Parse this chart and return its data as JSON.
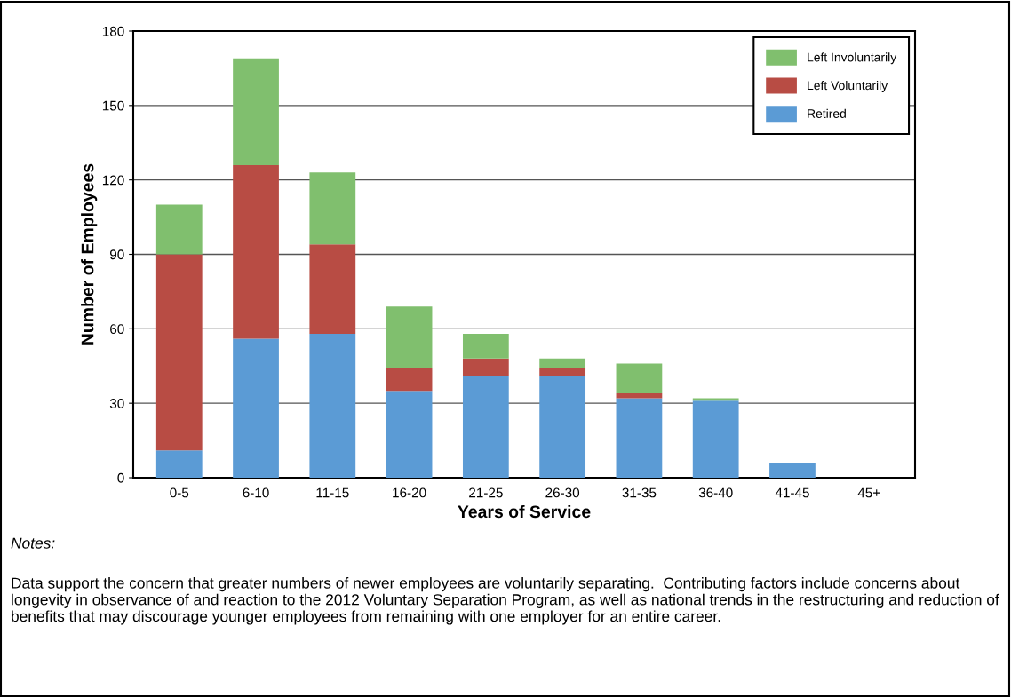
{
  "chart_data": {
    "type": "bar",
    "stacked": true,
    "xlabel": "Years of Service",
    "ylabel": "Number of Employees",
    "categories": [
      "0-5",
      "6-10",
      "11-15",
      "16-20",
      "21-25",
      "26-30",
      "31-35",
      "36-40",
      "41-45",
      "45+"
    ],
    "series": [
      {
        "name": "Retired",
        "color": "#5b9bd5",
        "values": [
          11,
          56,
          58,
          35,
          41,
          41,
          32,
          31,
          6,
          0
        ]
      },
      {
        "name": "Left Voluntarily",
        "color": "#b84c44",
        "values": [
          79,
          70,
          36,
          9,
          7,
          3,
          2,
          0,
          0,
          0
        ]
      },
      {
        "name": "Left Involuntarily",
        "color": "#80bf6e",
        "values": [
          20,
          43,
          29,
          25,
          10,
          4,
          12,
          1,
          0,
          0
        ]
      }
    ],
    "ylim": [
      0,
      180
    ],
    "yticks": [
      0,
      30,
      60,
      90,
      120,
      150,
      180
    ],
    "grid": "y",
    "legend": "top right",
    "annotations": [
      "Notes:",
      "Data support the concern that greater numbers of newer employees are voluntarily separating.  Contributing factors include concerns about longevity in observance of and reaction to the 2012 Voluntary Separation Program, as well as national trends in the restructuring and reduction of benefits that may discourage younger employees from remaining with one employer for an entire career."
    ]
  }
}
